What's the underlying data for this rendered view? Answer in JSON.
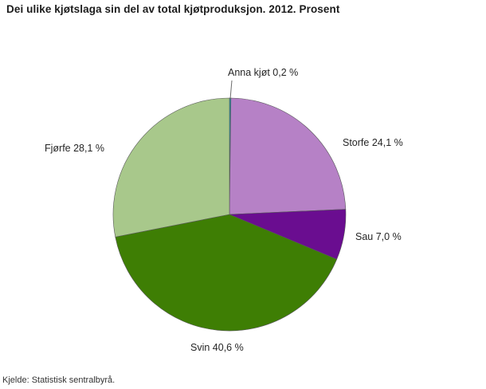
{
  "title": "Dei ulike kjøtslaga sin del av total kjøtproduksjon. 2012. Prosent",
  "source": "Kjelde: Statistisk sentralbyrå.",
  "chart_data": {
    "type": "pie",
    "title": "Dei ulike kjøtslaga sin del av total kjøtproduksjon. 2012. Prosent",
    "unit": "prosent",
    "start_angle_deg": 0,
    "clockwise": true,
    "legend": "none",
    "slices": [
      {
        "name": "Anna kjøt",
        "value": 0.2,
        "label": "Anna kjøt 0,2 %",
        "color": "#1e96ab"
      },
      {
        "name": "Storfe",
        "value": 24.1,
        "label": "Storfe 24,1  %",
        "color": "#b681c6"
      },
      {
        "name": "Sau",
        "value": 7.0,
        "label": "Sau 7,0 %",
        "color": "#6a0d90"
      },
      {
        "name": "Svin",
        "value": 40.6,
        "label": "Svin 40,6 %",
        "color": "#3e7e04"
      },
      {
        "name": "Fjørfe",
        "value": 28.1,
        "label": "Fjørfe 28,1 %",
        "color": "#a8c88b"
      }
    ],
    "slice_outline_color": "#58585a",
    "source": "Kjelde: Statistisk sentralbyrå."
  }
}
